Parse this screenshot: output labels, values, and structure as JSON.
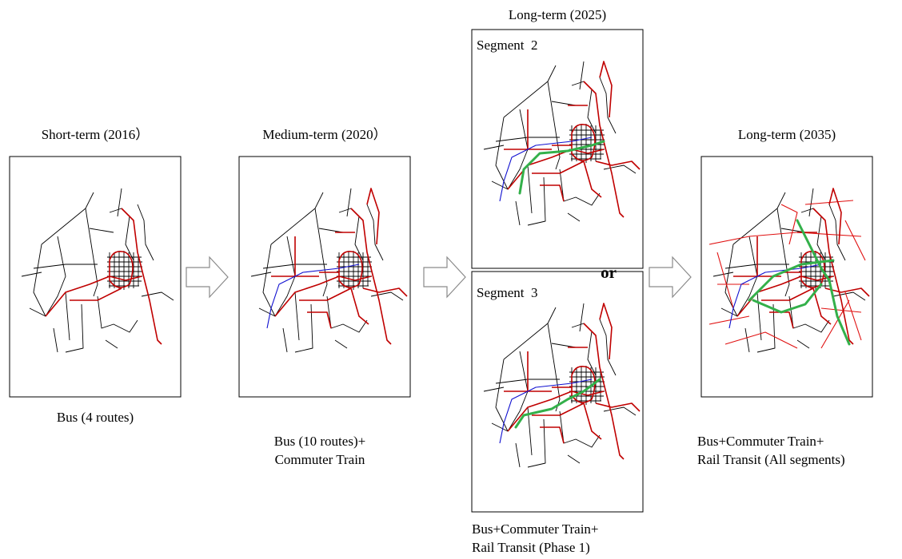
{
  "panels": [
    {
      "title": "Short-term (2016）",
      "caption": [
        "Bus (4 routes)"
      ]
    },
    {
      "title": "Medium-term (2020）",
      "caption": [
        "Bus (10 routes)+",
        "Commuter Train"
      ]
    },
    {
      "title": "Long-term (2025)",
      "options": [
        {
          "label": "Segment  2"
        },
        {
          "label": "Segment  3"
        }
      ],
      "separator": "or",
      "caption": [
        "Bus+Commuter Train+",
        "Rail Transit (Phase 1)"
      ]
    },
    {
      "title": "Long-term (2035)",
      "caption": [
        "Bus+Commuter Train+",
        "Rail Transit (All segments)"
      ]
    }
  ]
}
